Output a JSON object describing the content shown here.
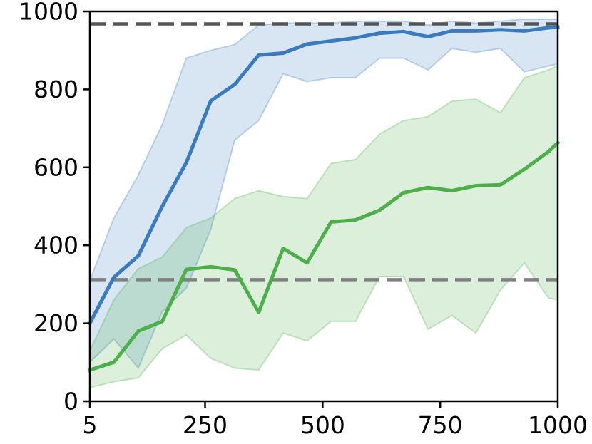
{
  "chart_data": {
    "type": "line",
    "title": "",
    "xlabel": "",
    "ylabel": "",
    "xlim": [
      5,
      1000
    ],
    "ylim": [
      0,
      1000
    ],
    "x_ticks": [
      5,
      250,
      500,
      750,
      1000
    ],
    "x_tick_labels": [
      "5",
      "250",
      "500",
      "750",
      "1000"
    ],
    "y_ticks": [
      0,
      200,
      400,
      600,
      800,
      1000
    ],
    "y_tick_labels": [
      "0",
      "200",
      "400",
      "600",
      "800",
      "1000"
    ],
    "grid": false,
    "legend": "none",
    "x": [
      5,
      56,
      108,
      159,
      210,
      262,
      313,
      364,
      416,
      467,
      518,
      570,
      621,
      672,
      724,
      775,
      826,
      878,
      929,
      980,
      1000
    ],
    "series": [
      {
        "color": "#3a7bbf",
        "values": [
          200,
          318,
          373,
          500,
          612,
          770,
          813,
          888,
          893,
          916,
          924,
          932,
          944,
          948,
          935,
          950,
          950,
          953,
          950,
          958,
          960
        ],
        "band_upper": [
          310,
          470,
          580,
          710,
          880,
          900,
          915,
          965,
          970,
          970,
          970,
          975,
          975,
          975,
          965,
          975,
          970,
          975,
          980,
          980,
          980
        ],
        "band_lower": [
          100,
          160,
          85,
          230,
          290,
          440,
          670,
          720,
          840,
          820,
          830,
          830,
          880,
          880,
          850,
          905,
          895,
          905,
          845,
          860,
          865
        ]
      },
      {
        "color": "#4daf4a",
        "values": [
          80,
          100,
          180,
          205,
          338,
          345,
          337,
          228,
          392,
          355,
          460,
          465,
          490,
          535,
          548,
          540,
          553,
          555,
          595,
          640,
          663
        ],
        "band_upper": [
          130,
          260,
          340,
          370,
          445,
          470,
          520,
          540,
          525,
          520,
          610,
          620,
          685,
          720,
          730,
          770,
          775,
          740,
          830,
          850,
          860
        ],
        "band_lower": [
          35,
          50,
          60,
          135,
          170,
          110,
          85,
          80,
          175,
          155,
          205,
          205,
          320,
          320,
          185,
          220,
          175,
          285,
          355,
          265,
          260
        ]
      }
    ],
    "reference_lines": [
      {
        "y": 968,
        "color": "#555555",
        "style": "dashed"
      },
      {
        "y": 312,
        "color": "#808080",
        "style": "dashed"
      }
    ]
  }
}
